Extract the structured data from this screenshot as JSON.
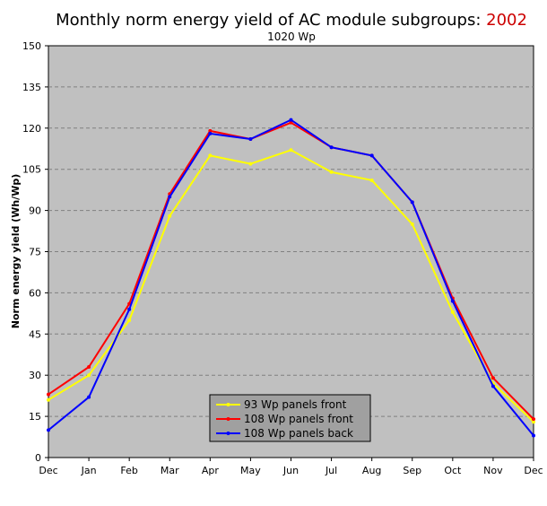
{
  "chart_data": {
    "type": "line",
    "title_main": "Monthly norm energy yield of AC module subgroups: ",
    "title_year": "2002",
    "subtitle": "1020 Wp",
    "xlabel": "",
    "ylabel": "Norm energy yield (Wh/Wp)",
    "categories": [
      "Dec",
      "Jan",
      "Feb",
      "Mar",
      "Apr",
      "May",
      "Jun",
      "Jul",
      "Aug",
      "Sep",
      "Oct",
      "Nov",
      "Dec"
    ],
    "ylim": [
      0,
      150
    ],
    "yticks": [
      0,
      15,
      30,
      45,
      60,
      75,
      90,
      105,
      120,
      135,
      150
    ],
    "grid": true,
    "legend_position": "bottom-center",
    "series": [
      {
        "name": "93 Wp panels front",
        "color": "#ffff00",
        "values": [
          21,
          30,
          50,
          88,
          110,
          107,
          112,
          104,
          101,
          85,
          53,
          27,
          13
        ]
      },
      {
        "name": "108 Wp panels front",
        "color": "#ff0000",
        "values": [
          23,
          33,
          56,
          96,
          119,
          116,
          122,
          113,
          110,
          93,
          58,
          29,
          14
        ]
      },
      {
        "name": "108 Wp panels back",
        "color": "#0000ff",
        "values": [
          10,
          22,
          54,
          95,
          118,
          116,
          123,
          113,
          110,
          93,
          57,
          26,
          8
        ]
      }
    ],
    "colors": {
      "plot_background": "#c0c0c0",
      "year_text": "#cc0000",
      "legend_background": "#a0a0a0"
    }
  }
}
